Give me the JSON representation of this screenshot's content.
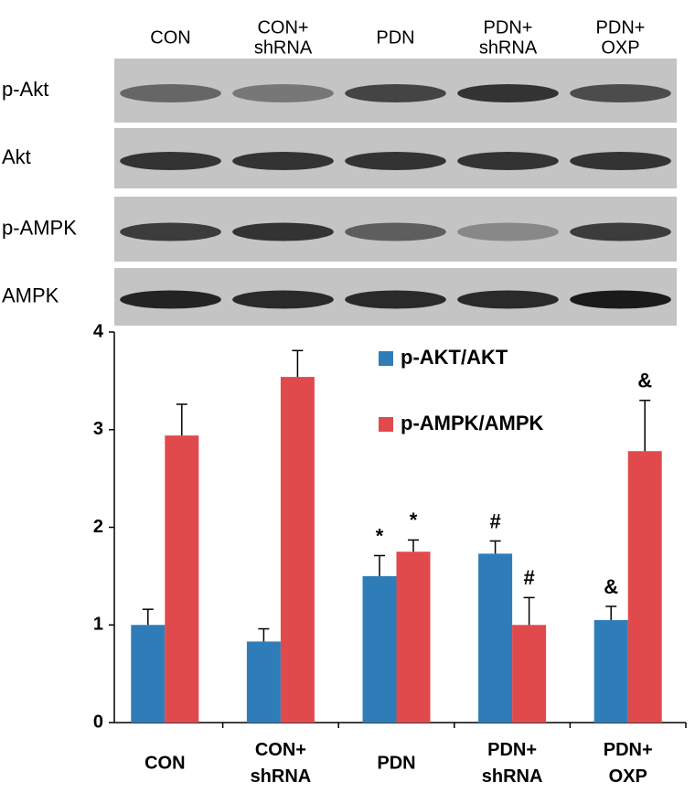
{
  "blot": {
    "lanes": [
      [
        "CON"
      ],
      [
        "CON+",
        "shRNA"
      ],
      [
        "PDN"
      ],
      [
        "PDN+",
        "shRNA"
      ],
      [
        "PDN+",
        "OXP"
      ]
    ],
    "rows": [
      "p-Akt",
      "Akt",
      "p-AMPK",
      "AMPK"
    ]
  },
  "chart_data": {
    "type": "bar",
    "categories": [
      [
        "CON"
      ],
      [
        "CON+",
        "shRNA"
      ],
      [
        "PDN"
      ],
      [
        "PDN+",
        "shRNA"
      ],
      [
        "PDN+",
        "OXP"
      ]
    ],
    "series": [
      {
        "name": "p-AKT/AKT",
        "color": "#2f7db8",
        "values": [
          1.0,
          0.83,
          1.5,
          1.73,
          1.05
        ],
        "errors": [
          0.16,
          0.13,
          0.21,
          0.13,
          0.14
        ],
        "significance": [
          null,
          null,
          "*",
          "#",
          "&"
        ]
      },
      {
        "name": "p-AMPK/AMPK",
        "color": "#e04a4c",
        "values": [
          2.94,
          3.54,
          1.75,
          1.0,
          2.78
        ],
        "errors": [
          0.32,
          0.27,
          0.12,
          0.28,
          0.52
        ],
        "significance": [
          null,
          null,
          "*",
          "#",
          "&"
        ]
      }
    ],
    "ylim": [
      0,
      4
    ],
    "yticks": [
      0,
      1,
      2,
      3,
      4
    ],
    "grid": false,
    "legend": "top-right"
  }
}
